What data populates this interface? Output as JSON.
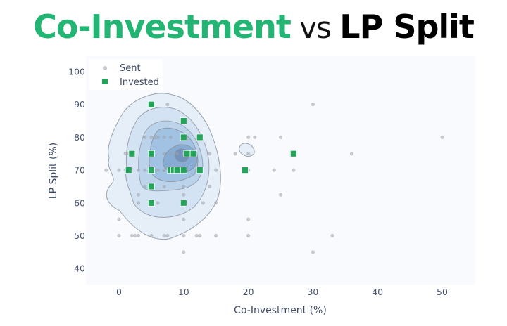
{
  "title": {
    "part1": "Co-Investment",
    "part2": " vs ",
    "part3": "LP Split",
    "colors": {
      "part1": "#22b573",
      "part2": "#111111",
      "part3": "#000000"
    }
  },
  "chart_data": {
    "type": "scatter",
    "title": "Co-Investment vs LP Split",
    "xlabel": "Co-Investment (%)",
    "ylabel": "LP Split (%)",
    "xlim": [
      -5,
      55
    ],
    "ylim": [
      35,
      103
    ],
    "x_ticks": [
      0,
      10,
      20,
      30,
      40,
      50
    ],
    "y_ticks": [
      40,
      50,
      60,
      70,
      80,
      90,
      100
    ],
    "grid": false,
    "legend_position": "top-left inside",
    "background": "#f9fafe",
    "series": [
      {
        "name": "Sent",
        "marker": "circle",
        "color": "#9aa0a8",
        "points": [
          [
            7.5,
            90
          ],
          [
            30,
            90
          ],
          [
            4,
            80
          ],
          [
            5,
            80
          ],
          [
            5.5,
            80
          ],
          [
            6,
            80
          ],
          [
            7,
            80
          ],
          [
            8,
            80
          ],
          [
            10,
            80
          ],
          [
            20,
            80
          ],
          [
            21,
            80
          ],
          [
            25,
            80
          ],
          [
            50,
            80
          ],
          [
            1,
            75
          ],
          [
            1.5,
            75
          ],
          [
            7,
            75
          ],
          [
            8,
            75
          ],
          [
            9,
            75
          ],
          [
            10,
            75
          ],
          [
            11,
            75
          ],
          [
            14,
            75
          ],
          [
            18,
            75
          ],
          [
            20,
            75
          ],
          [
            36,
            75
          ],
          [
            -2,
            70
          ],
          [
            0,
            70
          ],
          [
            1,
            70
          ],
          [
            3,
            70
          ],
          [
            4,
            70
          ],
          [
            5.5,
            70
          ],
          [
            6,
            70
          ],
          [
            7,
            70
          ],
          [
            8,
            70
          ],
          [
            12,
            70
          ],
          [
            15,
            70
          ],
          [
            20,
            70
          ],
          [
            24,
            70
          ],
          [
            27,
            70
          ],
          [
            4,
            65
          ],
          [
            7,
            65
          ],
          [
            10,
            65
          ],
          [
            14,
            65
          ],
          [
            3,
            62.5
          ],
          [
            10,
            62.5
          ],
          [
            25,
            62.5
          ],
          [
            3,
            60
          ],
          [
            6,
            60
          ],
          [
            10,
            60
          ],
          [
            13,
            60
          ],
          [
            15,
            60
          ],
          [
            0,
            55
          ],
          [
            10,
            55
          ],
          [
            20,
            55
          ],
          [
            0,
            50
          ],
          [
            2,
            50
          ],
          [
            2.5,
            50
          ],
          [
            3,
            50
          ],
          [
            5,
            50
          ],
          [
            7,
            50
          ],
          [
            7.5,
            50
          ],
          [
            10,
            50
          ],
          [
            12,
            50
          ],
          [
            12.5,
            50
          ],
          [
            15,
            50
          ],
          [
            20,
            50
          ],
          [
            33,
            50
          ],
          [
            10,
            45
          ],
          [
            30,
            45
          ]
        ]
      },
      {
        "name": "Invested",
        "marker": "square",
        "color": "#22a55a",
        "points": [
          [
            5,
            90
          ],
          [
            10,
            85
          ],
          [
            10,
            80
          ],
          [
            12.5,
            80
          ],
          [
            2,
            75
          ],
          [
            5,
            75
          ],
          [
            10.5,
            75
          ],
          [
            11.5,
            75
          ],
          [
            27,
            75
          ],
          [
            1.5,
            70
          ],
          [
            5,
            70
          ],
          [
            8,
            70
          ],
          [
            8.5,
            70
          ],
          [
            9,
            70
          ],
          [
            10,
            70
          ],
          [
            12.5,
            70
          ],
          [
            19.5,
            70
          ],
          [
            5,
            65
          ],
          [
            5,
            60
          ],
          [
            10,
            60
          ]
        ]
      },
      {
        "name": "Density contours",
        "type": "contour",
        "fill_colors": [
          "#e3edf8",
          "#cfe0f2",
          "#b5cfe9",
          "#95b9dd",
          "#7da5cf",
          "#6d8fb8"
        ],
        "center": [
          9,
          75
        ]
      }
    ]
  },
  "legend": {
    "items": [
      {
        "label": "Sent",
        "color": "#c4c7cc",
        "marker": "circle"
      },
      {
        "label": "Invested",
        "color": "#22a55a",
        "marker": "square"
      }
    ]
  },
  "axes": {
    "x_label": "Co-Investment (%)",
    "y_label": "LP Split (%)",
    "x_tick_labels": [
      "0",
      "10",
      "20",
      "30",
      "40",
      "50"
    ],
    "y_tick_labels": [
      "100",
      "90",
      "80",
      "70",
      "60",
      "50",
      "40"
    ]
  }
}
